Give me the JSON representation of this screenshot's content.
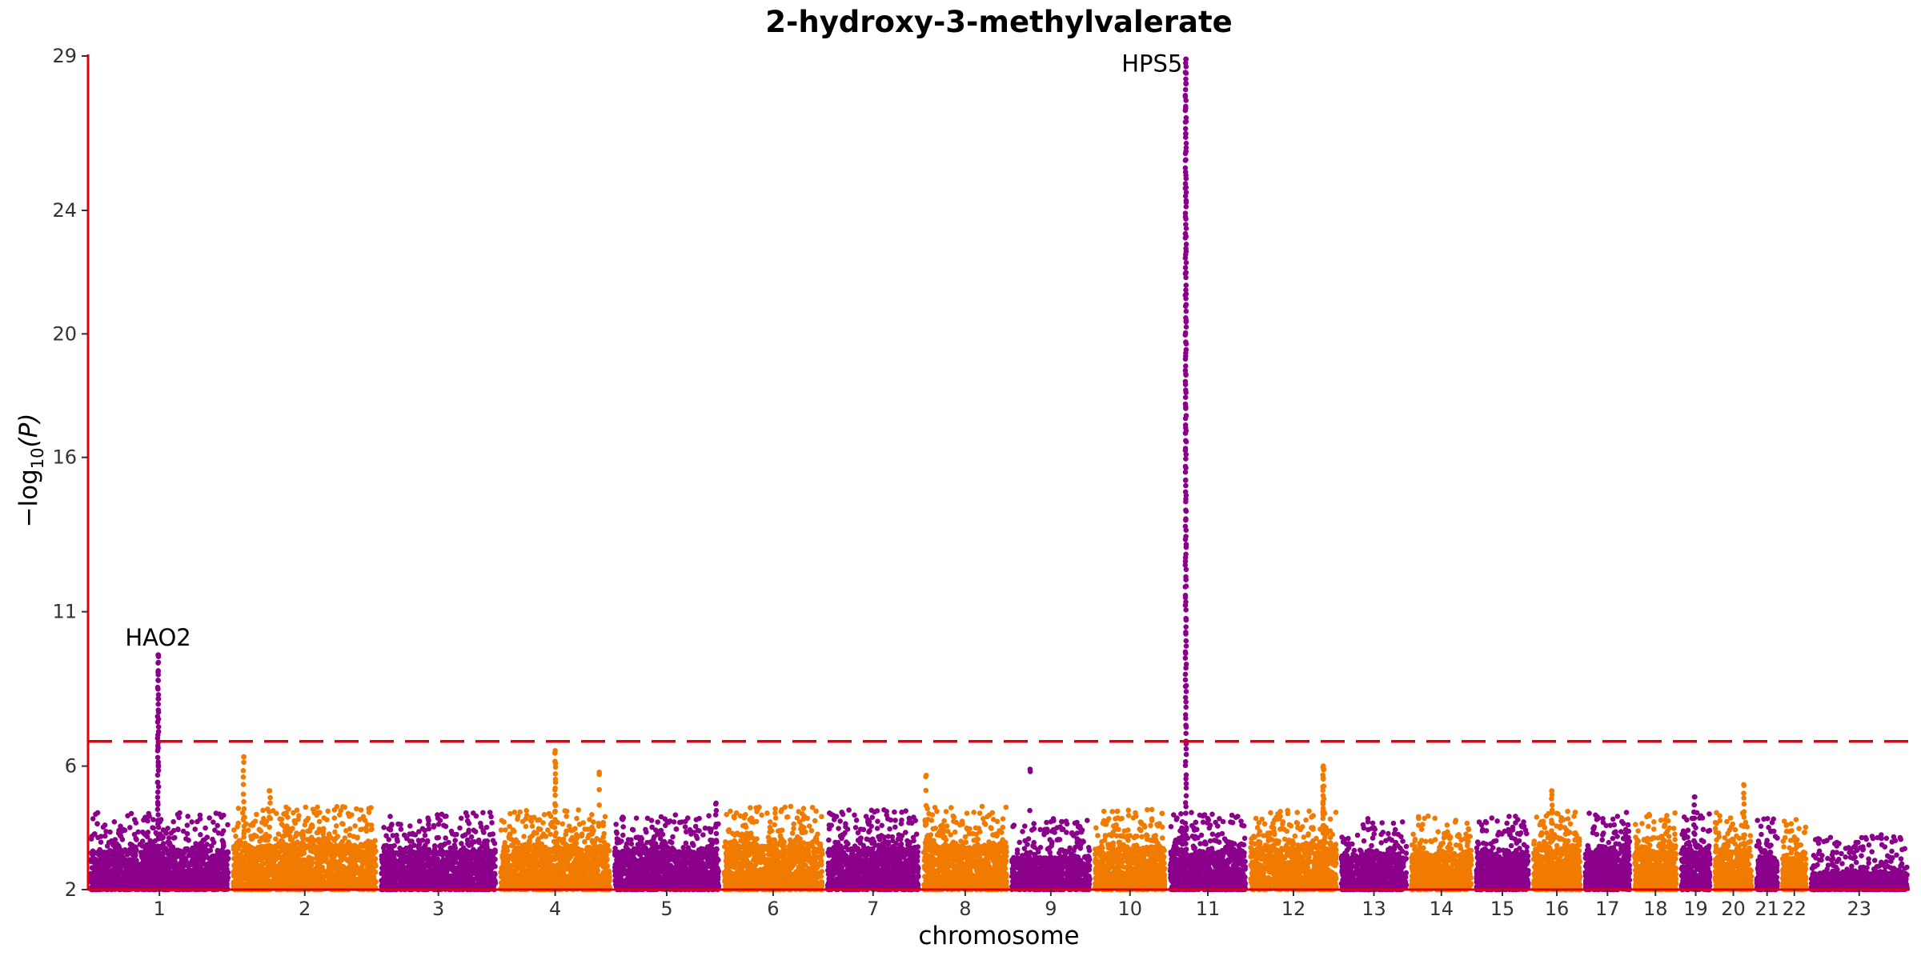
{
  "chart_data": {
    "type": "scatter",
    "subtype": "manhattan",
    "title": "2-hydroxy-3-methylvalerate",
    "xlabel": "chromosome",
    "ylabel_text": "−log",
    "ylabel_sub": "10",
    "ylabel_arg": "(P)",
    "ylim": [
      2,
      29
    ],
    "yticks": [
      2,
      6,
      11,
      16,
      20,
      24,
      29
    ],
    "ytick_labels": [
      "2",
      "6",
      "11",
      "16",
      "20",
      "24",
      "29"
    ],
    "grid": false,
    "significance_threshold": 6.8,
    "colors": {
      "odd": "#8B008B",
      "even": "#F07B00",
      "axis": "#E3000F",
      "threshold": "#E3000F"
    },
    "chromosomes": [
      {
        "label": "1",
        "start": 0,
        "end": 5.5,
        "base": 3.2
      },
      {
        "label": "2",
        "start": 5.5,
        "end": 11.2,
        "base": 3.4
      },
      {
        "label": "3",
        "start": 11.2,
        "end": 15.8,
        "base": 3.2
      },
      {
        "label": "4",
        "start": 15.8,
        "end": 20.2,
        "base": 3.3
      },
      {
        "label": "5",
        "start": 20.2,
        "end": 24.4,
        "base": 3.2
      },
      {
        "label": "6",
        "start": 24.4,
        "end": 28.4,
        "base": 3.4
      },
      {
        "label": "7",
        "start": 28.4,
        "end": 32.1,
        "base": 3.3
      },
      {
        "label": "8",
        "start": 32.1,
        "end": 35.5,
        "base": 3.4
      },
      {
        "label": "9",
        "start": 35.5,
        "end": 38.7,
        "base": 3.0
      },
      {
        "label": "10",
        "start": 38.7,
        "end": 41.6,
        "base": 3.3
      },
      {
        "label": "11",
        "start": 41.6,
        "end": 44.7,
        "base": 3.2
      },
      {
        "label": "12",
        "start": 44.7,
        "end": 48.2,
        "base": 3.3
      },
      {
        "label": "13",
        "start": 48.2,
        "end": 50.9,
        "base": 3.0
      },
      {
        "label": "14",
        "start": 50.9,
        "end": 53.4,
        "base": 3.1
      },
      {
        "label": "15",
        "start": 53.4,
        "end": 55.6,
        "base": 3.1
      },
      {
        "label": "16",
        "start": 55.6,
        "end": 57.6,
        "base": 3.3
      },
      {
        "label": "17",
        "start": 57.6,
        "end": 59.5,
        "base": 3.2
      },
      {
        "label": "18",
        "start": 59.5,
        "end": 61.3,
        "base": 3.2
      },
      {
        "label": "19",
        "start": 61.3,
        "end": 62.6,
        "base": 3.2
      },
      {
        "label": "20",
        "start": 62.6,
        "end": 64.2,
        "base": 3.2
      },
      {
        "label": "21",
        "start": 64.2,
        "end": 65.2,
        "base": 3.0
      },
      {
        "label": "22",
        "start": 65.2,
        "end": 66.3,
        "base": 3.0
      },
      {
        "label": "23",
        "start": 66.3,
        "end": 70.2,
        "base": 2.5
      }
    ],
    "peaks": [
      {
        "chr": "1",
        "pos": 2.7,
        "max": 9.6,
        "count": 50
      },
      {
        "chr": "2",
        "pos": 6.0,
        "max": 6.3,
        "count": 12
      },
      {
        "chr": "2",
        "pos": 7.0,
        "max": 5.2,
        "count": 8
      },
      {
        "chr": "4",
        "pos": 18.0,
        "max": 6.5,
        "count": 20
      },
      {
        "chr": "4",
        "pos": 19.7,
        "max": 5.8,
        "count": 5
      },
      {
        "chr": "5",
        "pos": 24.2,
        "max": 4.8,
        "count": 8
      },
      {
        "chr": "8",
        "pos": 32.3,
        "max": 5.7,
        "count": 5
      },
      {
        "chr": "9",
        "pos": 36.3,
        "max": 5.9,
        "count": 3
      },
      {
        "chr": "11",
        "pos": 42.3,
        "max": 28.9,
        "count": 180
      },
      {
        "chr": "12",
        "pos": 47.6,
        "max": 6.0,
        "count": 25
      },
      {
        "chr": "16",
        "pos": 56.4,
        "max": 5.2,
        "count": 12
      },
      {
        "chr": "19",
        "pos": 61.9,
        "max": 5.0,
        "count": 8
      },
      {
        "chr": "20",
        "pos": 63.8,
        "max": 5.4,
        "count": 10
      }
    ],
    "annotations": [
      {
        "text": "HAO2",
        "x": 2.7,
        "y": 9.9
      },
      {
        "text": "HPS5",
        "x": 41.0,
        "y": 28.5
      }
    ]
  }
}
